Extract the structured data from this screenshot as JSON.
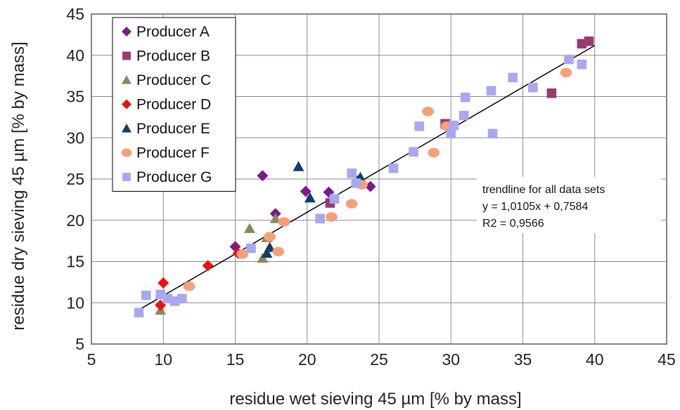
{
  "chart_data": {
    "type": "scatter",
    "xlabel": "residue wet sieving 45 µm [% by mass]",
    "ylabel": "residue dry sieving  45 µm [% by mass]",
    "xlim": [
      5,
      45
    ],
    "ylim": [
      5,
      45
    ],
    "xticks": [
      5,
      10,
      15,
      20,
      25,
      30,
      35,
      40,
      45
    ],
    "yticks": [
      5,
      10,
      15,
      20,
      25,
      30,
      35,
      40,
      45
    ],
    "grid": true,
    "legend_position": "top-left",
    "series": [
      {
        "name": "Producer A",
        "marker": "diamond",
        "color": "#7b1a8c",
        "points": [
          [
            15,
            16.8
          ],
          [
            16.9,
            25.4
          ],
          [
            17.8,
            20.8
          ],
          [
            19.9,
            23.5
          ],
          [
            21.5,
            23.4
          ],
          [
            24.4,
            24.1
          ]
        ]
      },
      {
        "name": "Producer B",
        "marker": "square",
        "color": "#963c6e",
        "points": [
          [
            21.6,
            22.1
          ],
          [
            29.6,
            31.7
          ],
          [
            37,
            35.4
          ],
          [
            39.1,
            41.4
          ],
          [
            39.6,
            41.7
          ]
        ]
      },
      {
        "name": "Producer C",
        "marker": "triangle",
        "color": "#8c8a5c",
        "points": [
          [
            9.8,
            9.1
          ],
          [
            16,
            19
          ],
          [
            16.9,
            15.4
          ],
          [
            17.2,
            17.9
          ],
          [
            17.8,
            20.2
          ]
        ]
      },
      {
        "name": "Producer D",
        "marker": "diamond",
        "color": "#ee1111",
        "points": [
          [
            9.8,
            9.7
          ],
          [
            10,
            12.4
          ],
          [
            13.1,
            14.5
          ],
          [
            15.2,
            16
          ]
        ]
      },
      {
        "name": "Producer E",
        "marker": "triangle",
        "color": "#123d6b",
        "points": [
          [
            17.2,
            16
          ],
          [
            17.4,
            16.7
          ],
          [
            19.4,
            26.5
          ],
          [
            20.2,
            22.7
          ],
          [
            23.5,
            24.8
          ],
          [
            23.7,
            25.2
          ]
        ]
      },
      {
        "name": "Producer F",
        "marker": "circle",
        "color": "#f7a078",
        "points": [
          [
            11.8,
            12
          ],
          [
            15.5,
            15.9
          ],
          [
            17.4,
            18
          ],
          [
            18,
            16.2
          ],
          [
            18.4,
            19.8
          ],
          [
            21.7,
            20.4
          ],
          [
            23.1,
            22
          ],
          [
            23.8,
            24.3
          ],
          [
            28.4,
            33.2
          ],
          [
            28.8,
            28.2
          ],
          [
            29.7,
            31.4
          ],
          [
            38,
            37.9
          ]
        ]
      },
      {
        "name": "Producer G",
        "marker": "square",
        "color": "#a8a8f0",
        "points": [
          [
            8.3,
            8.8
          ],
          [
            8.8,
            10.9
          ],
          [
            9.8,
            11
          ],
          [
            10.3,
            10.5
          ],
          [
            10.8,
            10.2
          ],
          [
            11.3,
            10.5
          ],
          [
            16.1,
            16.6
          ],
          [
            20.9,
            20.2
          ],
          [
            21.9,
            22.6
          ],
          [
            23.1,
            25.7
          ],
          [
            23.4,
            24.5
          ],
          [
            26,
            26.3
          ],
          [
            27.4,
            28.3
          ],
          [
            27.8,
            31.4
          ],
          [
            30,
            30.5
          ],
          [
            30.2,
            31.5
          ],
          [
            30.9,
            32.7
          ],
          [
            31,
            34.9
          ],
          [
            32.8,
            35.7
          ],
          [
            32.9,
            30.5
          ],
          [
            34.3,
            37.3
          ],
          [
            35.7,
            36.1
          ],
          [
            38.2,
            39.5
          ],
          [
            39.1,
            38.9
          ]
        ]
      }
    ],
    "trendline": {
      "slope": 1.0105,
      "intercept": 0.7584,
      "x_range": [
        8.1,
        40
      ],
      "color": "#000000"
    },
    "annotation": {
      "lines": [
        "trendline for all data sets",
        "y = 1,0105x + 0,7584",
        "R2 = 0,9566"
      ]
    }
  }
}
